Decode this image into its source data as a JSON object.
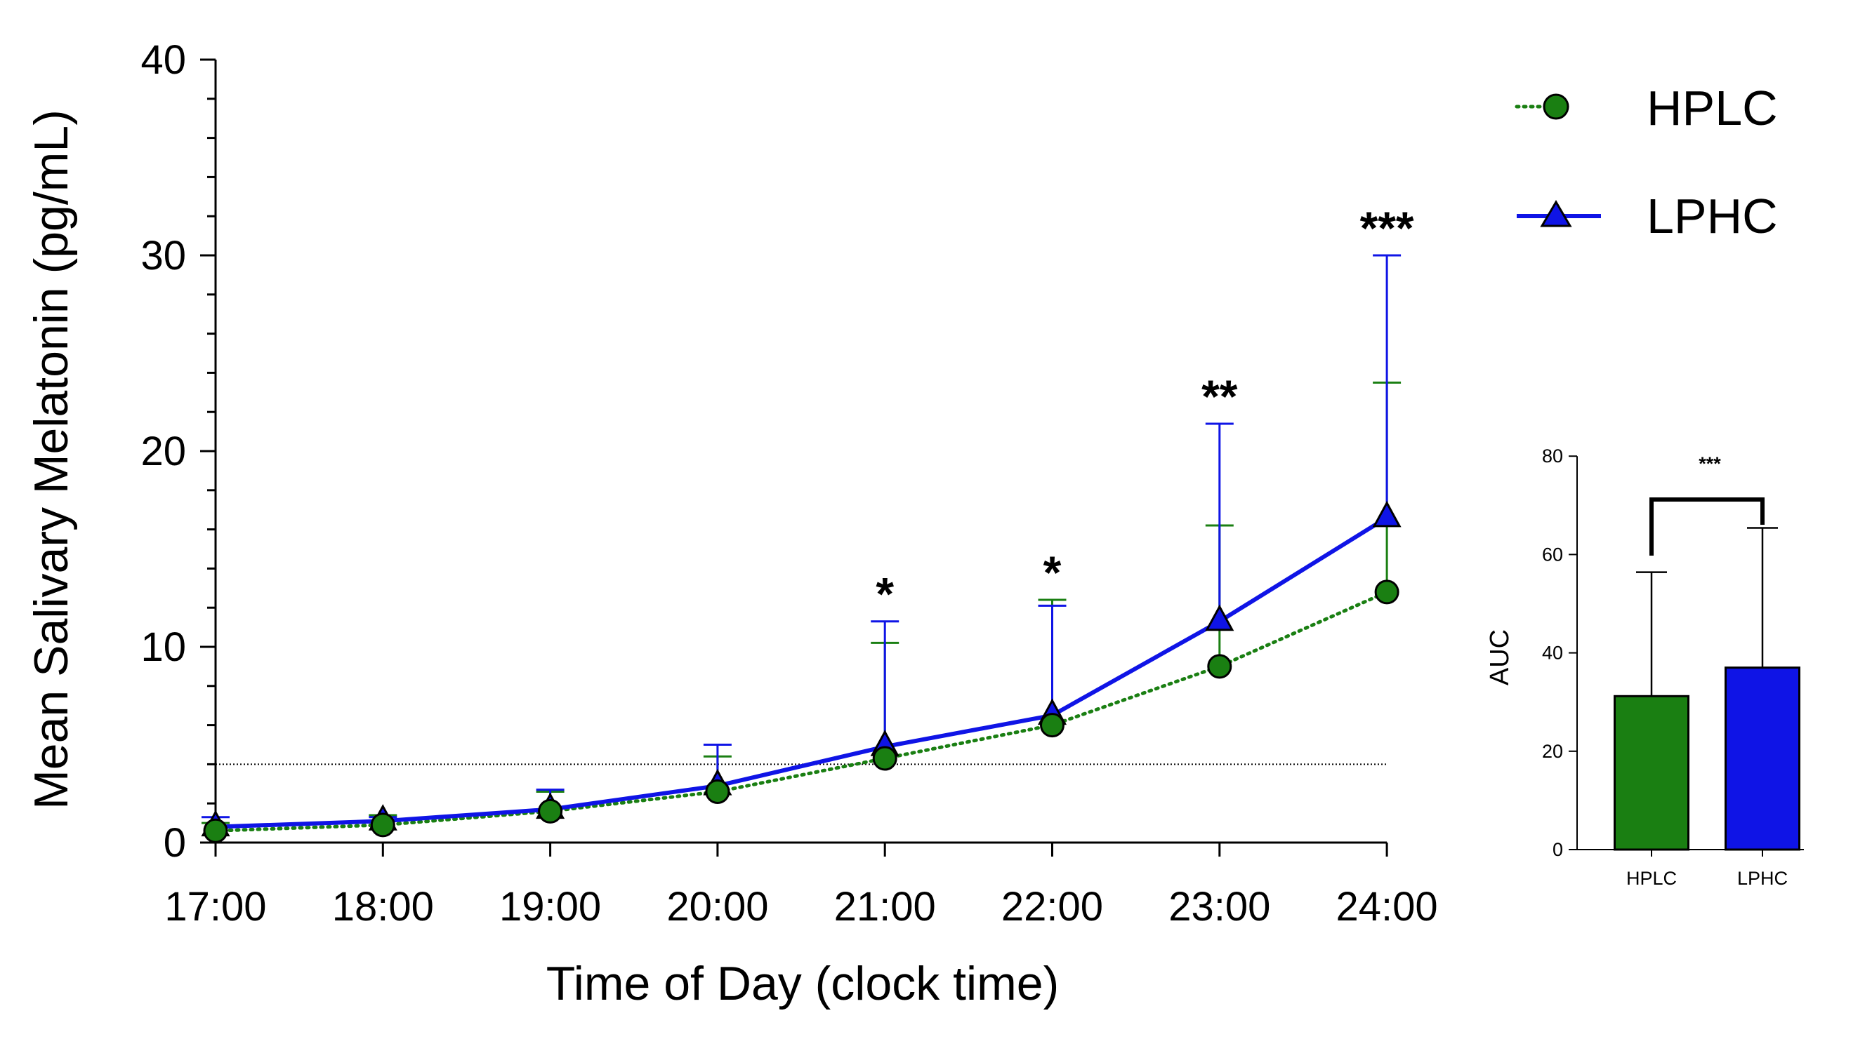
{
  "chart_data": [
    {
      "type": "line",
      "xlabel": "Time of Day (clock time)",
      "ylabel": "Mean Salivary Melatonin (pg/mL)",
      "ylim": [
        0,
        40
      ],
      "yticks": [
        "0",
        "10",
        "20",
        "30",
        "40"
      ],
      "categories": [
        "17:00",
        "18:00",
        "19:00",
        "20:00",
        "21:00",
        "22:00",
        "23:00",
        "24:00"
      ],
      "reference_line": 4.0,
      "series": [
        {
          "name": "HPLC",
          "color": "#1a7f12",
          "line_style": "dotted",
          "marker": "circle",
          "values": [
            0.6,
            0.9,
            1.6,
            2.6,
            4.3,
            6.0,
            9.0,
            12.8
          ],
          "error_upper": [
            1.0,
            1.4,
            2.6,
            4.4,
            10.2,
            12.4,
            16.2,
            23.5
          ]
        },
        {
          "name": "LPHC",
          "color": "#0f14e6",
          "line_style": "solid",
          "marker": "triangle",
          "values": [
            0.8,
            1.1,
            1.7,
            2.9,
            4.9,
            6.5,
            11.3,
            16.6
          ],
          "error_upper": [
            1.3,
            1.3,
            2.7,
            5.0,
            11.3,
            12.1,
            21.4,
            30.0
          ]
        }
      ],
      "significance": [
        "",
        "",
        "",
        "",
        "*",
        "*",
        "**",
        "***"
      ]
    },
    {
      "type": "bar",
      "ylabel": "AUC",
      "ylim": [
        0,
        80
      ],
      "yticks": [
        "0",
        "20",
        "40",
        "60",
        "80"
      ],
      "categories": [
        "HPLC",
        "LPHC"
      ],
      "values": [
        31.2,
        37.0
      ],
      "error_upper": [
        56.4,
        65.4
      ],
      "colors": [
        "#1a7f12",
        "#0f14e6"
      ],
      "significance": "***"
    }
  ]
}
